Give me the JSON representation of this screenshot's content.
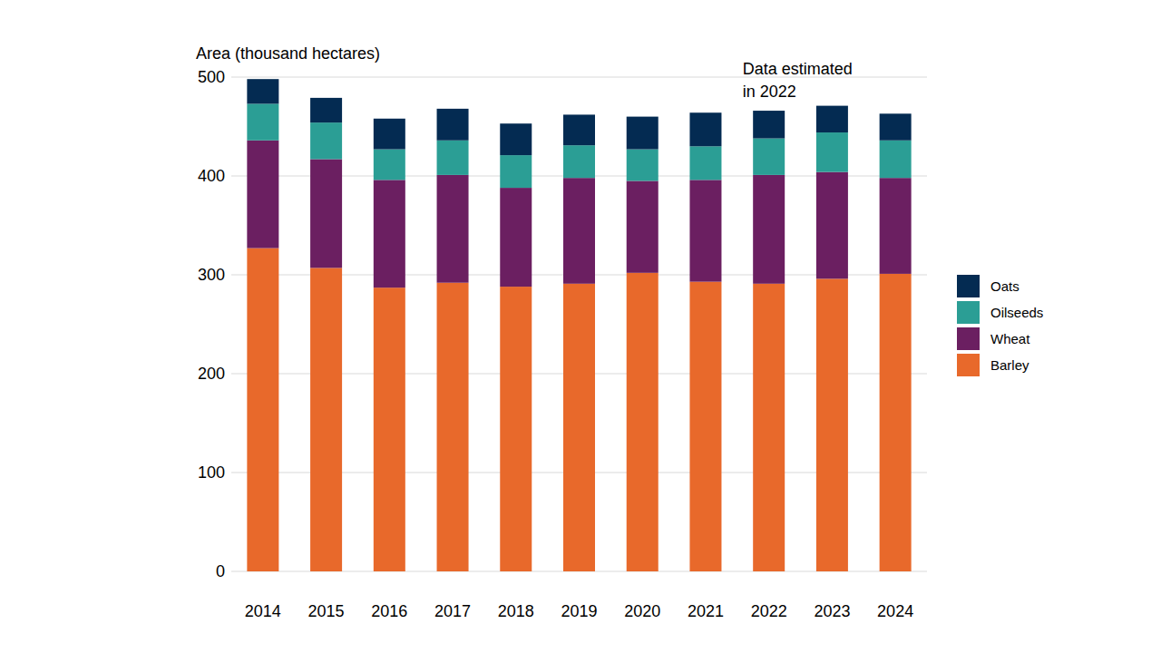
{
  "chart_data": {
    "type": "bar",
    "stacked": true,
    "y_label": "Area (thousand hectares)",
    "annotation": "Data estimated\nin 2022",
    "categories": [
      "2014",
      "2015",
      "2016",
      "2017",
      "2018",
      "2019",
      "2020",
      "2021",
      "2022",
      "2023",
      "2024"
    ],
    "series": [
      {
        "name": "Barley",
        "color": "#e8692b",
        "values": [
          327,
          307,
          287,
          292,
          288,
          291,
          302,
          293,
          291,
          296,
          301
        ]
      },
      {
        "name": "Wheat",
        "color": "#6b1f61",
        "values": [
          109,
          110,
          109,
          109,
          100,
          107,
          93,
          103,
          110,
          108,
          97
        ]
      },
      {
        "name": "Oilseeds",
        "color": "#2b9e95",
        "values": [
          37,
          37,
          31,
          35,
          33,
          33,
          32,
          34,
          37,
          40,
          38
        ]
      },
      {
        "name": "Oats",
        "color": "#042b52",
        "values": [
          25,
          25,
          31,
          32,
          32,
          31,
          33,
          34,
          28,
          27,
          27
        ]
      }
    ],
    "ylim": [
      0,
      500
    ],
    "yticks": [
      0,
      100,
      200,
      300,
      400,
      500
    ],
    "grid": true,
    "legend": "right"
  }
}
